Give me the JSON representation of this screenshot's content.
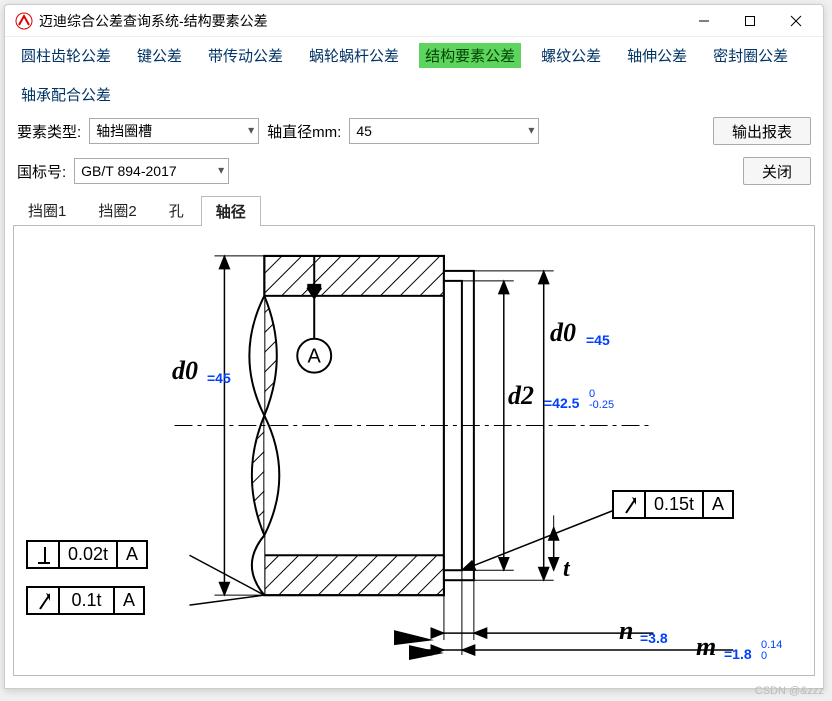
{
  "window": {
    "title": "迈迪综合公差查询系统-结构要素公差"
  },
  "menu": {
    "items": [
      "圆柱齿轮公差",
      "键公差",
      "带传动公差",
      "蜗轮蜗杆公差",
      "结构要素公差",
      "螺纹公差",
      "轴伸公差",
      "密封圈公差",
      "轴承配合公差"
    ],
    "active_index": 4
  },
  "controls": {
    "element_type_label": "要素类型:",
    "element_type_value": "轴挡圈槽",
    "shaft_dia_label": "轴直径mm:",
    "shaft_dia_value": "45",
    "std_label": "国标号:",
    "std_value": "GB/T 894-2017",
    "export_btn": "输出报表",
    "close_btn": "关闭"
  },
  "tabs": {
    "items": [
      "挡圈1",
      "挡圈2",
      "孔",
      "轴径"
    ],
    "active_index": 3
  },
  "diagram": {
    "d0_left": {
      "label": "d0",
      "value": "=45"
    },
    "d0_right": {
      "label": "d0",
      "value": "=45"
    },
    "d2": {
      "label": "d2",
      "value": "=42.5",
      "upper": "0",
      "lower": "-0.25"
    },
    "t": {
      "label": "t"
    },
    "n": {
      "label": "n",
      "value": "=3.8"
    },
    "m": {
      "label": "m",
      "value": "=1.8",
      "upper": "0.14",
      "lower": "0"
    },
    "datum": "A",
    "fcf_perp": {
      "tol": "0.02t",
      "datum": "A"
    },
    "fcf_runout1": {
      "tol": "0.1t",
      "datum": "A"
    },
    "fcf_runout2": {
      "tol": "0.15t",
      "datum": "A"
    }
  },
  "watermark": "CSDN @&zzz"
}
